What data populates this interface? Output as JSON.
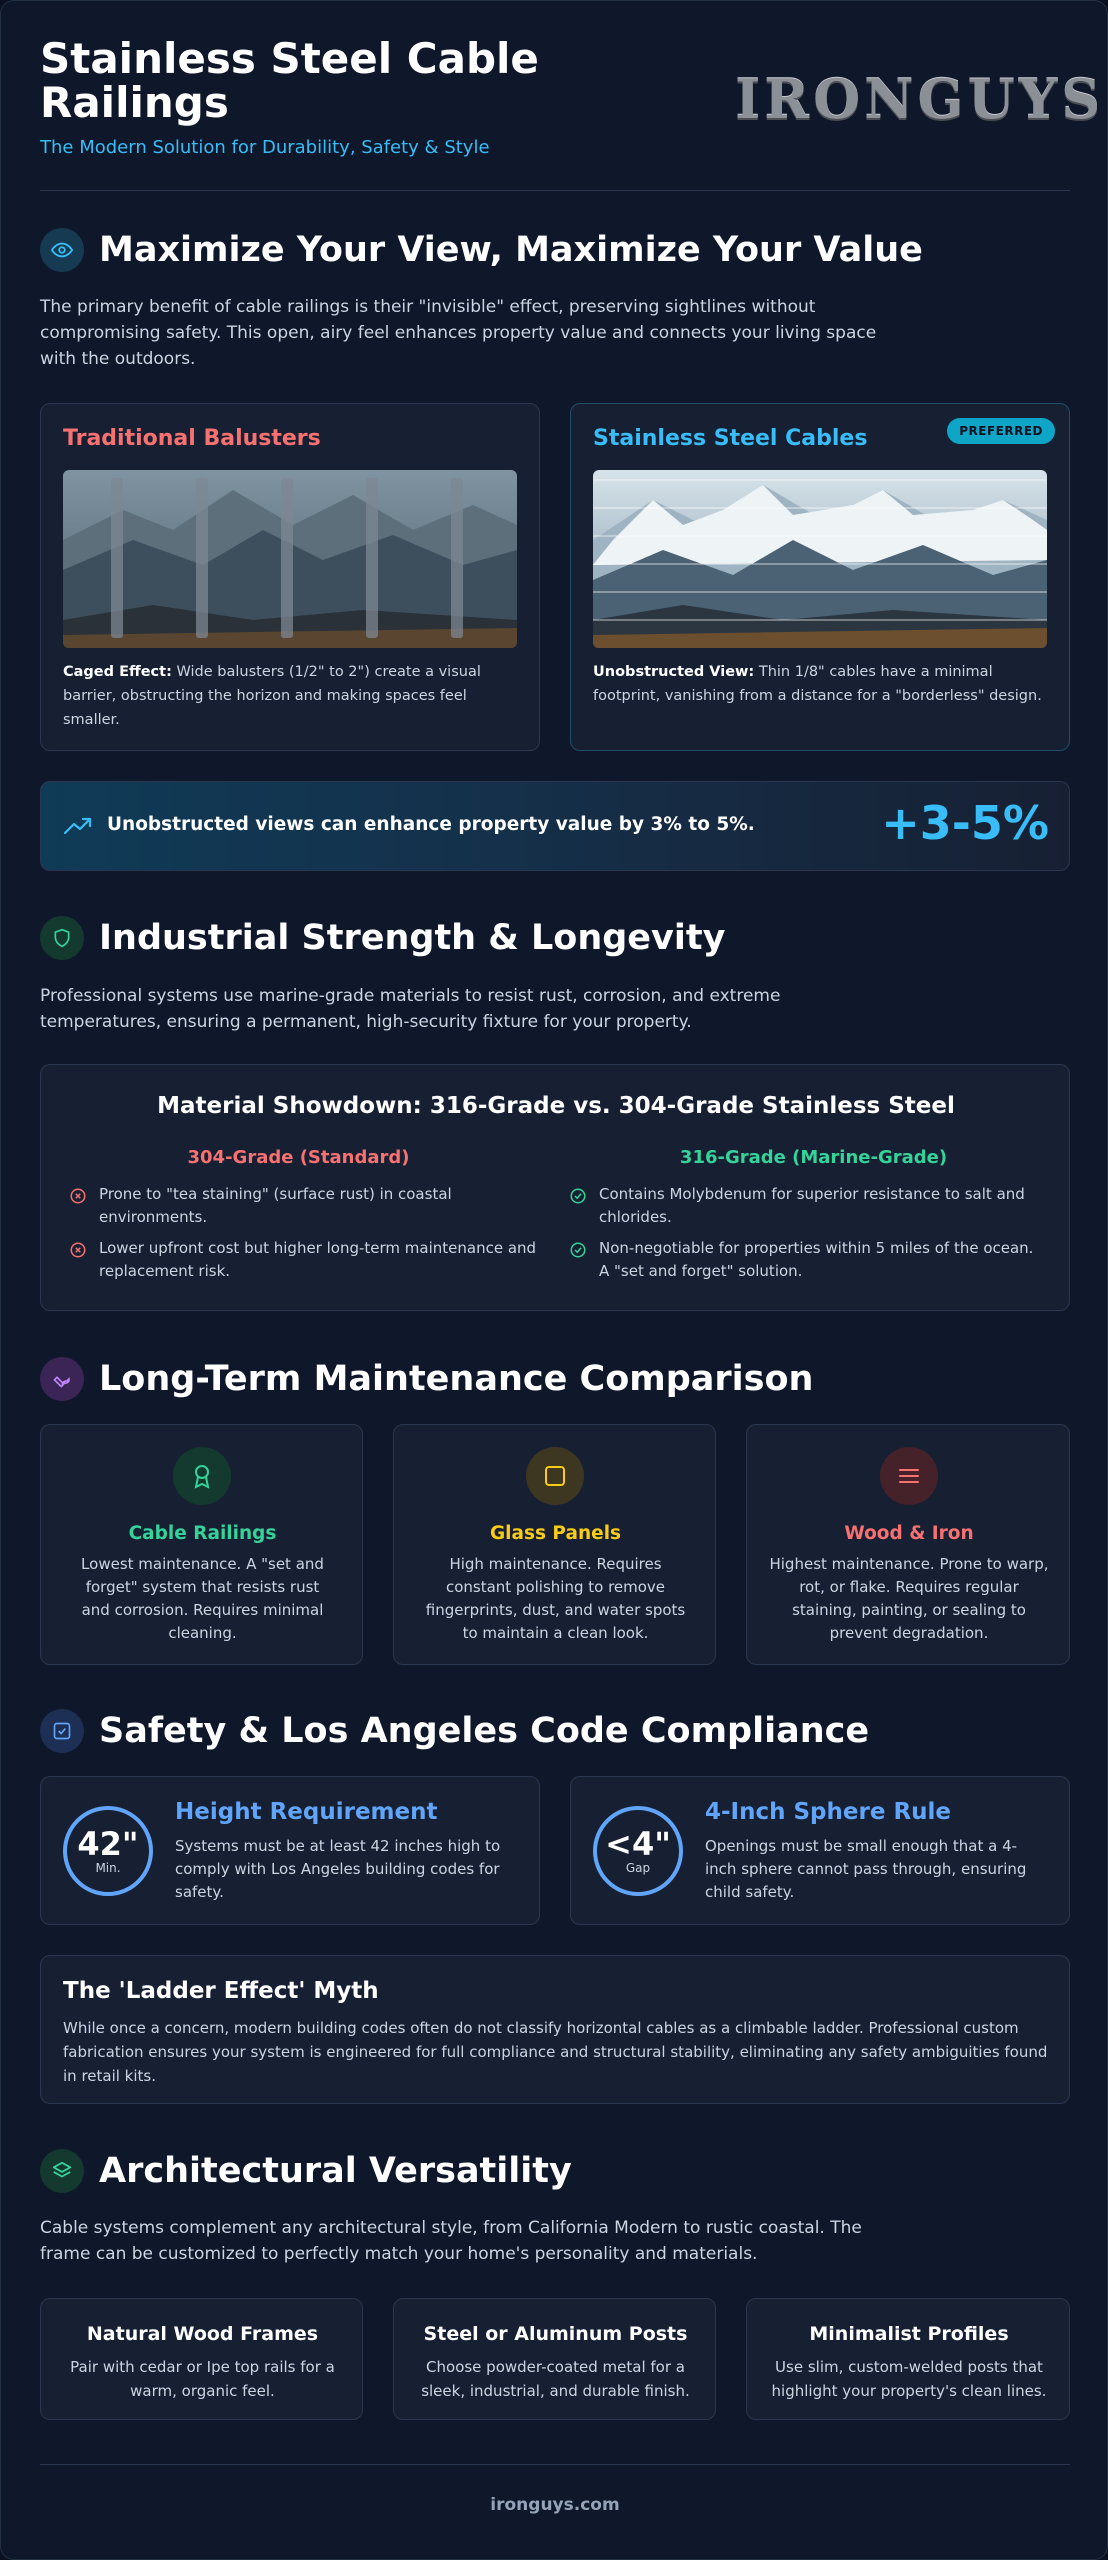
{
  "header": {
    "title": "Stainless Steel Cable Railings",
    "subtitle": "The Modern Solution for Durability, Safety & Style",
    "logo": "IRONGUYS"
  },
  "view": {
    "title": "Maximize Your View, Maximize Your Value",
    "intro": "The primary benefit of cable railings is their \"invisible\" effect, preserving sightlines without compromising safety. This open, airy feel enhances property value and connects your living space with the outdoors.",
    "traditional": {
      "title": "Traditional Balusters",
      "desc_bold": "Caged Effect:",
      "desc": " Wide balusters (1/2\" to 2\") create a visual barrier, obstructing the horizon and making spaces feel smaller."
    },
    "cables": {
      "title": "Stainless Steel Cables",
      "badge": "PREFERRED",
      "desc_bold": "Unobstructed View:",
      "desc": " Thin 1/8\" cables have a minimal footprint, vanishing from a distance for a \"borderless\" design."
    },
    "banner": {
      "text": "Unobstructed views can enhance property value by 3% to 5%.",
      "value": "+3-5%"
    }
  },
  "strength": {
    "title": "Industrial Strength & Longevity",
    "intro": "Professional systems use marine-grade materials to resist rust, corrosion, and extreme temperatures, ensuring a permanent, high-security fixture for your property.",
    "showdown_title": "Material Showdown: 316-Grade vs. 304-Grade Stainless Steel",
    "grade304": {
      "heading": "304-Grade (Standard)",
      "items": [
        "Prone to \"tea staining\" (surface rust) in coastal environments.",
        "Lower upfront cost but higher long-term maintenance and replacement risk."
      ]
    },
    "grade316": {
      "heading": "316-Grade (Marine-Grade)",
      "items": [
        "Contains Molybdenum for superior resistance to salt and chlorides.",
        "Non-negotiable for properties within 5 miles of the ocean. A \"set and forget\" solution."
      ]
    }
  },
  "maintenance": {
    "title": "Long-Term Maintenance Comparison",
    "cards": [
      {
        "title": "Cable Railings",
        "desc": "Lowest maintenance. A \"set and forget\" system that resists rust and corrosion. Requires minimal cleaning."
      },
      {
        "title": "Glass Panels",
        "desc": "High maintenance. Requires constant polishing to remove fingerprints, dust, and water spots to maintain a clean look."
      },
      {
        "title": "Wood & Iron",
        "desc": "Highest maintenance. Prone to warp, rot, or flake. Requires regular staining, painting, or sealing to prevent degradation."
      }
    ]
  },
  "safety": {
    "title": "Safety & Los Angeles Code Compliance",
    "height": {
      "value": "42\"",
      "unit": "Min.",
      "title": "Height Requirement",
      "desc": "Systems must be at least 42 inches high to comply with Los Angeles building codes for safety."
    },
    "sphere": {
      "value": "<4\"",
      "unit": "Gap",
      "title": "4-Inch Sphere Rule",
      "desc": "Openings must be small enough that a 4-inch sphere cannot pass through, ensuring child safety."
    },
    "ladder": {
      "title": "The 'Ladder Effect' Myth",
      "desc": "While once a concern, modern building codes often do not classify horizontal cables as a climbable ladder. Professional custom fabrication ensures your system is engineered for full compliance and structural stability, eliminating any safety ambiguities found in retail kits."
    }
  },
  "arch": {
    "title": "Architectural Versatility",
    "intro": "Cable systems complement any architectural style, from California Modern to rustic coastal. The frame can be customized to perfectly match your home's personality and materials.",
    "cards": [
      {
        "title": "Natural Wood Frames",
        "desc": "Pair with cedar or Ipe top rails for a warm, organic feel."
      },
      {
        "title": "Steel or Aluminum Posts",
        "desc": "Choose powder-coated metal for a sleek, industrial, and durable finish."
      },
      {
        "title": "Minimalist Profiles",
        "desc": "Use slim, custom-welded posts that highlight your property's clean lines."
      }
    ]
  },
  "footer": {
    "site": "ironguys.com"
  },
  "colors": {
    "accent": "#38bdf8",
    "red": "#f87171",
    "green": "#34d399",
    "yellow": "#facc15",
    "blue": "#60a5fa"
  }
}
